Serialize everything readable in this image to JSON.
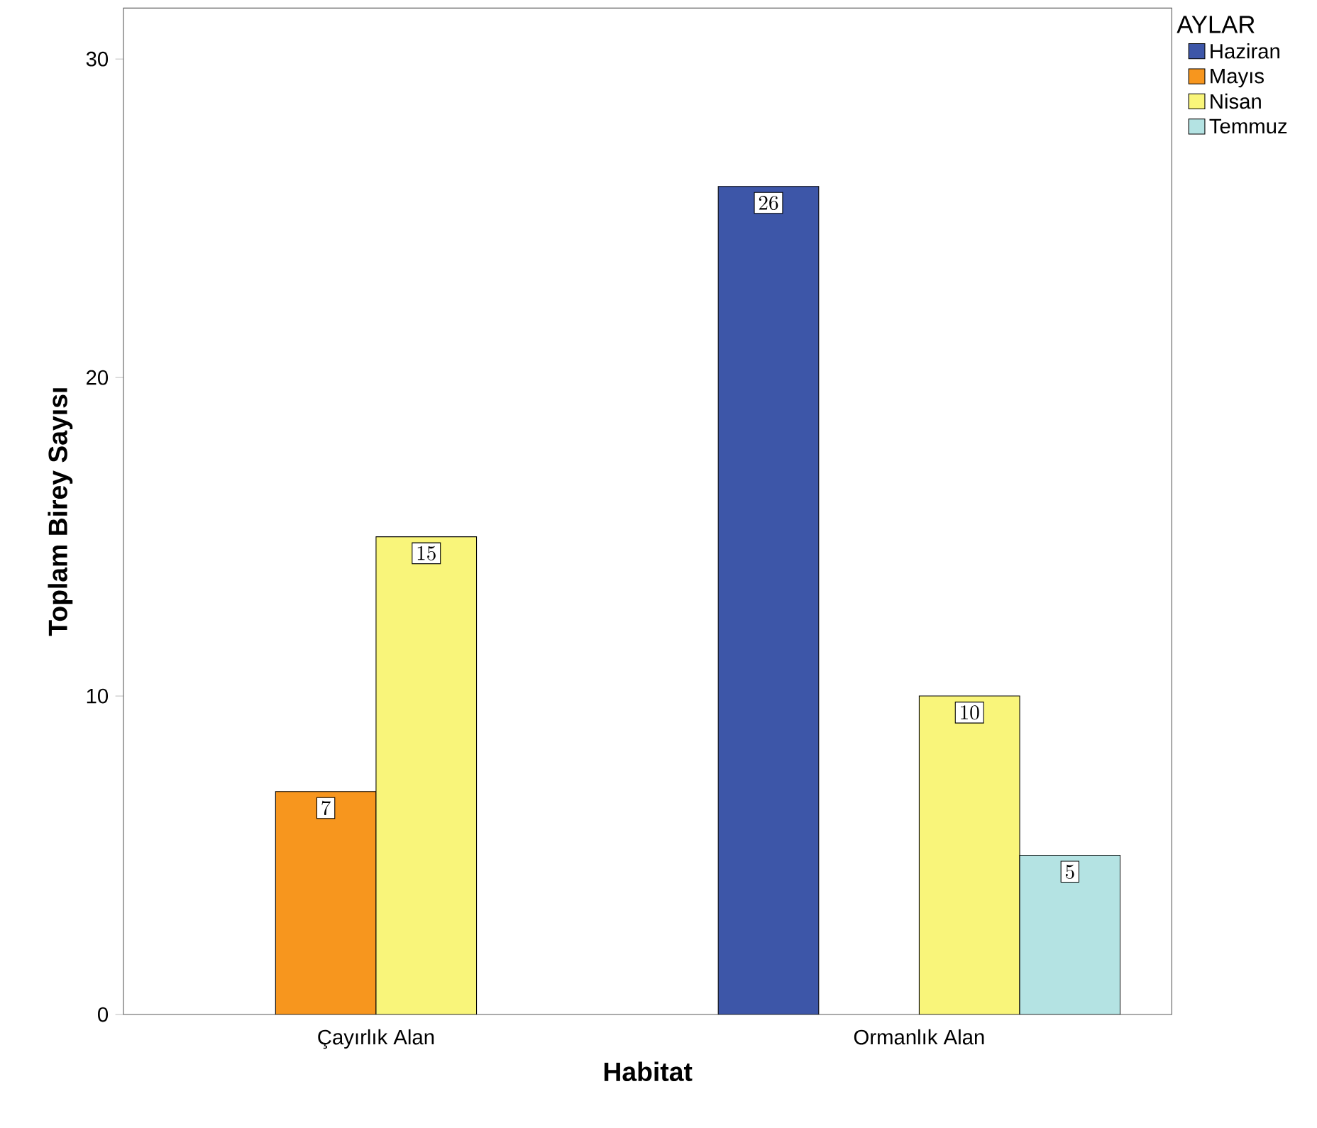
{
  "chart_data": {
    "type": "bar",
    "xlabel": "Habitat",
    "ylabel": "Toplam Birey Sayısı",
    "legend_title": "AYLAR",
    "categories": [
      "Çayırlık Alan",
      "Ormanlık Alan"
    ],
    "series": [
      {
        "name": "Haziran",
        "color": "#3d56a8",
        "values": [
          null,
          26
        ]
      },
      {
        "name": "Mayıs",
        "color": "#f7961e",
        "values": [
          7,
          null
        ]
      },
      {
        "name": "Nisan",
        "color": "#f9f57a",
        "values": [
          15,
          10
        ]
      },
      {
        "name": "Temmuz",
        "color": "#b4e3e3",
        "values": [
          null,
          5
        ]
      }
    ],
    "ylim": [
      0,
      31.6
    ],
    "yticks": [
      0,
      10,
      20,
      30
    ],
    "grid": false,
    "legend": "right",
    "data_labels": true
  }
}
